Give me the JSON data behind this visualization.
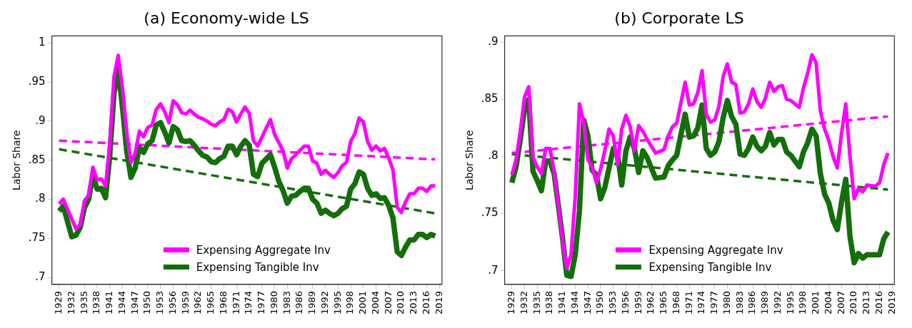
{
  "chart_data": [
    {
      "type": "line",
      "title": "(a) Economy-wide LS",
      "ylabel": "Labor Share",
      "xlim": [
        1927.3,
        2019.6
      ],
      "ylim": [
        0.691,
        1.009
      ],
      "xticks": [
        1929,
        1932,
        1935,
        1938,
        1941,
        1944,
        1947,
        1950,
        1953,
        1956,
        1959,
        1962,
        1965,
        1968,
        1971,
        1974,
        1977,
        1980,
        1983,
        1986,
        1989,
        1992,
        1995,
        1998,
        2001,
        2004,
        2007,
        2010,
        2013,
        2016,
        2019
      ],
      "yticks": [
        {
          "value": 0.7,
          "label": ".7"
        },
        {
          "value": 0.75,
          "label": ".75"
        },
        {
          "value": 0.8,
          "label": ".8"
        },
        {
          "value": 0.85,
          "label": ".85"
        },
        {
          "value": 0.9,
          "label": ".9"
        },
        {
          "value": 0.95,
          "label": ".95"
        },
        1
      ],
      "legend": "bottom",
      "marker": "none",
      "series": [
        {
          "name": "Expensing Aggregate Inv",
          "color": "#ff00ff",
          "line_style": "solid",
          "x": [
            1929,
            1930,
            1933,
            1934,
            1935,
            1936,
            1937,
            1938,
            1939,
            1940,
            1941,
            1942,
            1943,
            1944,
            1945,
            1946,
            1947,
            1948,
            1949,
            1950,
            1951,
            1952,
            1953,
            1954,
            1955,
            1956,
            1957,
            1958,
            1959,
            1960,
            1961,
            1962,
            1963,
            1964,
            1965,
            1966,
            1967,
            1968,
            1969,
            1970,
            1971,
            1972,
            1973,
            1974,
            1975,
            1976,
            1978,
            1979,
            1980,
            1982,
            1983,
            1984,
            1985,
            1987,
            1988,
            1989,
            1990,
            1991,
            1992,
            1993,
            1994,
            1995,
            1996,
            1997,
            1998,
            1999,
            2000,
            2001,
            2002,
            2003,
            2004,
            2005,
            2006,
            2007,
            2008,
            2009,
            2010,
            2011,
            2012,
            2013,
            2014,
            2015,
            2016,
            2017,
            2018
          ],
          "values": [
            0.794,
            0.8,
            0.762,
            0.767,
            0.798,
            0.805,
            0.841,
            0.825,
            0.826,
            0.817,
            0.871,
            0.957,
            0.984,
            0.942,
            0.886,
            0.847,
            0.859,
            0.887,
            0.88,
            0.892,
            0.895,
            0.915,
            0.922,
            0.912,
            0.898,
            0.926,
            0.921,
            0.911,
            0.909,
            0.914,
            0.909,
            0.905,
            0.903,
            0.9,
            0.896,
            0.894,
            0.899,
            0.902,
            0.915,
            0.912,
            0.899,
            0.909,
            0.918,
            0.91,
            0.875,
            0.868,
            0.891,
            0.902,
            0.883,
            0.862,
            0.84,
            0.852,
            0.857,
            0.868,
            0.868,
            0.849,
            0.846,
            0.832,
            0.837,
            0.832,
            0.828,
            0.834,
            0.843,
            0.847,
            0.874,
            0.884,
            0.904,
            0.899,
            0.874,
            0.863,
            0.868,
            0.862,
            0.865,
            0.853,
            0.838,
            0.79,
            0.783,
            0.797,
            0.807,
            0.807,
            0.814,
            0.814,
            0.81,
            0.817,
            0.817
          ]
        },
        {
          "name": "Expensing Tangible Inv",
          "color": "#146e0a",
          "line_style": "solid",
          "x": [
            1929,
            1930,
            1932,
            1933,
            1934,
            1935,
            1936,
            1937,
            1938,
            1939,
            1940,
            1941,
            1942,
            1943,
            1944,
            1945,
            1946,
            1947,
            1948,
            1949,
            1950,
            1951,
            1952,
            1953,
            1954,
            1955,
            1956,
            1957,
            1958,
            1959,
            1960,
            1961,
            1962,
            1963,
            1964,
            1965,
            1966,
            1967,
            1968,
            1969,
            1970,
            1971,
            1972,
            1973,
            1974,
            1975,
            1976,
            1977,
            1979,
            1980,
            1981,
            1982,
            1983,
            1984,
            1985,
            1986,
            1987,
            1988,
            1989,
            1990,
            1991,
            1992,
            1993,
            1994,
            1995,
            1996,
            1997,
            1998,
            1999,
            2000,
            2001,
            2002,
            2003,
            2004,
            2005,
            2006,
            2007,
            2008,
            2009,
            2010,
            2011,
            2012,
            2013,
            2014,
            2015,
            2016,
            2017,
            2018
          ],
          "values": [
            0.785,
            0.791,
            0.752,
            0.754,
            0.764,
            0.789,
            0.8,
            0.831,
            0.813,
            0.814,
            0.802,
            0.856,
            0.936,
            0.966,
            0.918,
            0.862,
            0.828,
            0.84,
            0.866,
            0.86,
            0.871,
            0.875,
            0.895,
            0.898,
            0.886,
            0.872,
            0.893,
            0.889,
            0.875,
            0.874,
            0.875,
            0.869,
            0.862,
            0.856,
            0.854,
            0.848,
            0.847,
            0.852,
            0.855,
            0.868,
            0.868,
            0.857,
            0.868,
            0.875,
            0.869,
            0.832,
            0.829,
            0.846,
            0.857,
            0.841,
            0.823,
            0.811,
            0.795,
            0.804,
            0.805,
            0.81,
            0.814,
            0.814,
            0.8,
            0.795,
            0.782,
            0.786,
            0.782,
            0.779,
            0.782,
            0.788,
            0.791,
            0.813,
            0.82,
            0.835,
            0.832,
            0.814,
            0.805,
            0.807,
            0.801,
            0.802,
            0.792,
            0.776,
            0.733,
            0.728,
            0.739,
            0.748,
            0.748,
            0.755,
            0.755,
            0.751,
            0.755,
            0.753
          ]
        },
        {
          "type": "line",
          "color": "#ff00ff",
          "line_style": "dashed",
          "x": [
            1929,
            2018
          ],
          "values": [
            0.875,
            0.851
          ]
        },
        {
          "type": "line",
          "color": "#146e0a",
          "line_style": "dashed",
          "x": [
            1929,
            2018
          ],
          "values": [
            0.864,
            0.782
          ]
        }
      ]
    },
    {
      "type": "line",
      "title": "(b) Corporate LS",
      "ylabel": "Labor Share",
      "xlim": [
        1927.3,
        2019.5
      ],
      "ylim": [
        0.688,
        0.9055
      ],
      "xticks": [
        1929,
        1932,
        1935,
        1938,
        1941,
        1944,
        1947,
        1950,
        1953,
        1956,
        1959,
        1962,
        1965,
        1968,
        1971,
        1974,
        1977,
        1980,
        1983,
        1986,
        1989,
        1992,
        1995,
        1998,
        2001,
        2004,
        2007,
        2010,
        2013,
        2016,
        2019
      ],
      "yticks": [
        {
          "value": 0.7,
          "label": ".7"
        },
        {
          "value": 0.75,
          "label": ".75"
        },
        {
          "value": 0.8,
          "label": ".8"
        },
        {
          "value": 0.85,
          "label": ".85"
        },
        {
          "value": 0.9,
          "label": ".9"
        }
      ],
      "legend": "bottom",
      "marker": "none",
      "series": [
        {
          "name": "Expensing Aggregate Inv",
          "color": "#ff00ff",
          "line_style": "solid",
          "x": [
            1929,
            1930,
            1931,
            1932,
            1933,
            1934,
            1935,
            1936,
            1937,
            1938,
            1939,
            1940,
            1941,
            1942,
            1943,
            1944,
            1945,
            1946,
            1947,
            1948,
            1949,
            1950,
            1951,
            1952,
            1953,
            1954,
            1955,
            1956,
            1957,
            1958,
            1959,
            1960,
            1961,
            1963,
            1965,
            1966,
            1967,
            1968,
            1970,
            1971,
            1972,
            1973,
            1974,
            1975,
            1976,
            1977,
            1978,
            1979,
            1980,
            1981,
            1982,
            1983,
            1984,
            1985,
            1986,
            1987,
            1988,
            1989,
            1990,
            1991,
            1992,
            1993,
            1994,
            1995,
            1996,
            1997,
            1998,
            1999,
            2000,
            2001,
            2002,
            2003,
            2004,
            2005,
            2006,
            2007,
            2008,
            2009,
            2010,
            2011,
            2012,
            2013,
            2015,
            2016,
            2017,
            2018
          ],
          "values": [
            0.784,
            0.797,
            0.822,
            0.852,
            0.861,
            0.799,
            0.791,
            0.785,
            0.807,
            0.807,
            0.787,
            0.757,
            0.726,
            0.702,
            0.714,
            0.765,
            0.846,
            0.83,
            0.797,
            0.791,
            0.777,
            0.789,
            0.805,
            0.824,
            0.818,
            0.793,
            0.824,
            0.836,
            0.826,
            0.805,
            0.827,
            0.822,
            0.815,
            0.803,
            0.806,
            0.818,
            0.826,
            0.829,
            0.865,
            0.845,
            0.846,
            0.856,
            0.875,
            0.837,
            0.83,
            0.832,
            0.844,
            0.87,
            0.881,
            0.865,
            0.863,
            0.838,
            0.839,
            0.846,
            0.859,
            0.848,
            0.843,
            0.851,
            0.865,
            0.857,
            0.861,
            0.862,
            0.85,
            0.849,
            0.846,
            0.843,
            0.86,
            0.873,
            0.889,
            0.882,
            0.84,
            0.824,
            0.814,
            0.8,
            0.79,
            0.82,
            0.846,
            0.8,
            0.763,
            0.772,
            0.769,
            0.775,
            0.774,
            0.777,
            0.793,
            0.803
          ]
        },
        {
          "name": "Expensing Tangible Inv",
          "color": "#146e0a",
          "line_style": "solid",
          "x": [
            1929,
            1930,
            1931,
            1932,
            1933,
            1934,
            1935,
            1936,
            1937,
            1938,
            1939,
            1940,
            1941,
            1942,
            1943,
            1944,
            1945,
            1946,
            1947,
            1948,
            1949,
            1950,
            1951,
            1952,
            1953,
            1954,
            1955,
            1956,
            1957,
            1958,
            1959,
            1960,
            1961,
            1963,
            1965,
            1966,
            1967,
            1968,
            1970,
            1971,
            1972,
            1973,
            1974,
            1975,
            1976,
            1977,
            1978,
            1979,
            1980,
            1981,
            1982,
            1983,
            1984,
            1985,
            1986,
            1987,
            1988,
            1989,
            1990,
            1991,
            1992,
            1993,
            1994,
            1995,
            1996,
            1997,
            1998,
            1999,
            2000,
            2001,
            2002,
            2003,
            2004,
            2005,
            2006,
            2007,
            2008,
            2009,
            2010,
            2011,
            2012,
            2013,
            2016,
            2017,
            2018
          ],
          "values": [
            0.777,
            0.791,
            0.815,
            0.842,
            0.85,
            0.787,
            0.779,
            0.77,
            0.796,
            0.796,
            0.785,
            0.757,
            0.728,
            0.696,
            0.695,
            0.714,
            0.753,
            0.832,
            0.818,
            0.788,
            0.784,
            0.763,
            0.773,
            0.79,
            0.807,
            0.802,
            0.775,
            0.805,
            0.817,
            0.807,
            0.786,
            0.805,
            0.799,
            0.781,
            0.782,
            0.792,
            0.797,
            0.801,
            0.837,
            0.817,
            0.818,
            0.825,
            0.845,
            0.807,
            0.801,
            0.804,
            0.813,
            0.834,
            0.849,
            0.835,
            0.828,
            0.802,
            0.801,
            0.807,
            0.817,
            0.809,
            0.805,
            0.809,
            0.821,
            0.81,
            0.815,
            0.815,
            0.804,
            0.801,
            0.796,
            0.791,
            0.804,
            0.812,
            0.824,
            0.818,
            0.785,
            0.767,
            0.759,
            0.744,
            0.736,
            0.76,
            0.78,
            0.73,
            0.707,
            0.715,
            0.711,
            0.714,
            0.714,
            0.728,
            0.734
          ]
        },
        {
          "type": "line",
          "color": "#ff00ff",
          "line_style": "dashed",
          "x": [
            1929,
            2018
          ],
          "values": [
            0.803,
            0.835
          ]
        },
        {
          "type": "line",
          "color": "#146e0a",
          "line_style": "dashed",
          "x": [
            1929,
            2018
          ],
          "values": [
            0.802,
            0.771
          ]
        }
      ]
    }
  ]
}
